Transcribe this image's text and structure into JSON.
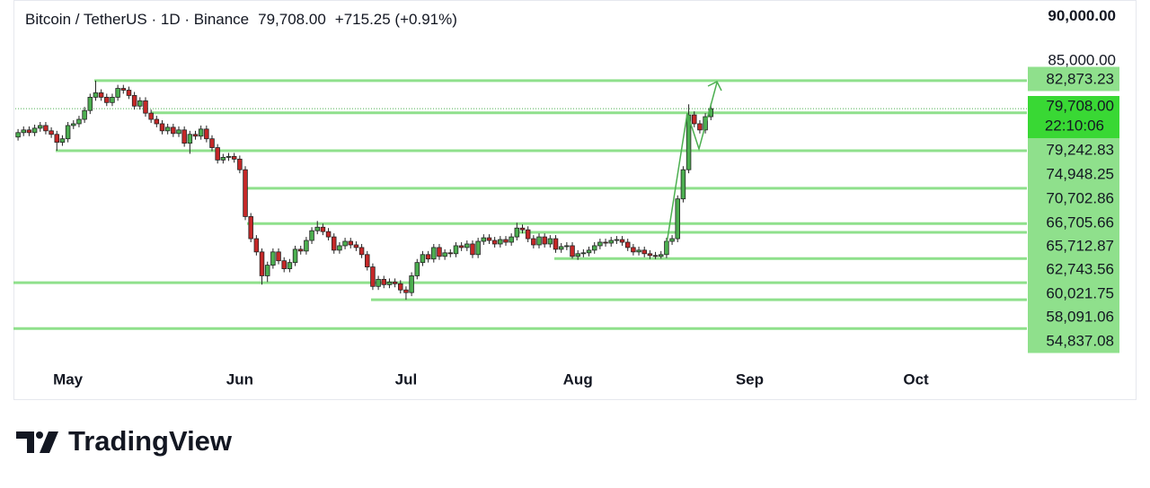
{
  "chart_data": {
    "type": "candlestick",
    "title": "Bitcoin / TetherUS · 1D · Binance",
    "change": "+715.25 (+0.91%)",
    "last_price": {
      "value": 79708,
      "label": "79,708.00"
    },
    "countdown": "22:10:06",
    "brand": "TradingView",
    "up_color": "#4caf50",
    "down_color": "#c62828",
    "level_color": "#8fe08c",
    "ylim": [
      50900,
      92000
    ],
    "yticks": [
      {
        "value": 90000,
        "label": "90,000.00"
      },
      {
        "value": 85000,
        "label": "85,000.00"
      }
    ],
    "levels": [
      {
        "value": 82873.23,
        "label": "82,873.23"
      },
      {
        "value": 79242.83,
        "label": "79,242.83"
      },
      {
        "value": 74948.25,
        "label": "74,948.25"
      },
      {
        "value": 70702.86,
        "label": "70,702.86"
      },
      {
        "value": 66705.66,
        "label": "66,705.66"
      },
      {
        "value": 65712.87,
        "label": "65,712.87"
      },
      {
        "value": 62743.56,
        "label": "62,743.56"
      },
      {
        "value": 60021.75,
        "label": "60,021.75"
      },
      {
        "value": 58091.06,
        "label": "58,091.06"
      },
      {
        "value": 54837.08,
        "label": "54,837.08"
      }
    ],
    "categories": [
      null,
      null,
      null,
      null,
      null,
      null,
      null,
      null,
      null,
      "May",
      null,
      null,
      null,
      null,
      null,
      null,
      null,
      null,
      null,
      null,
      null,
      null,
      null,
      null,
      null,
      null,
      null,
      null,
      null,
      null,
      null,
      null,
      null,
      null,
      null,
      null,
      null,
      null,
      null,
      null,
      "Jun",
      null,
      null,
      null,
      null,
      null,
      null,
      null,
      null,
      null,
      null,
      null,
      null,
      null,
      null,
      null,
      null,
      null,
      null,
      null,
      null,
      null,
      null,
      null,
      null,
      null,
      null,
      null,
      null,
      null,
      "Jul",
      null,
      null,
      null,
      null,
      null,
      null,
      null,
      null,
      null,
      null,
      null,
      null,
      null,
      null,
      null,
      null,
      null,
      null,
      null,
      null,
      null,
      null,
      null,
      null,
      null,
      null,
      null,
      null,
      null,
      null,
      "Aug",
      null,
      null,
      null,
      null,
      null,
      null,
      null,
      null,
      null,
      null,
      null,
      null,
      null,
      null,
      null,
      null,
      null,
      null,
      null,
      null,
      null,
      null,
      null,
      null,
      null,
      null,
      null,
      null,
      null,
      null,
      "Sep",
      null,
      null,
      null,
      null,
      null,
      null,
      null,
      null,
      null,
      null,
      null,
      null,
      null,
      null,
      null,
      null,
      null,
      null,
      null,
      null,
      null,
      null,
      null,
      null,
      null,
      null,
      null,
      null,
      null,
      "Oct",
      null,
      null,
      null,
      null,
      null,
      null,
      null,
      null,
      null,
      null,
      null,
      null,
      null,
      null,
      null,
      null,
      null,
      null,
      null,
      null
    ],
    "open": [
      76500,
      77000,
      77300,
      77000,
      77500,
      77800,
      77200,
      76800,
      75900,
      76300,
      77800,
      78000,
      78500,
      79500,
      81000,
      81500,
      81000,
      80400,
      81000,
      82000,
      81800,
      81200,
      80000,
      80600,
      79200,
      78500,
      78000,
      77200,
      77600,
      76900,
      77300,
      75800,
      76800,
      76600,
      77400,
      76300,
      75300,
      73900,
      74200,
      74300,
      74000,
      72800,
      67500,
      65000,
      63500,
      60800,
      62000,
      63500,
      62500,
      61600,
      62300,
      63800,
      63600,
      64800,
      65900,
      66300,
      65800,
      65200,
      63700,
      64200,
      64700,
      64300,
      64000,
      63200,
      61800,
      59600,
      60400,
      59800,
      60100,
      59900,
      59200,
      58900,
      60800,
      62300,
      63200,
      62700,
      64000,
      63000,
      63400,
      63300,
      64200,
      64000,
      64400,
      63200,
      64700,
      65100,
      64800,
      64400,
      64900,
      64600,
      65200,
      66200,
      66000,
      65000,
      64300,
      65200,
      64400,
      65000,
      63800,
      64100,
      64200,
      63000,
      63300,
      63400,
      63700,
      64200,
      64600,
      64500,
      64800,
      64900,
      64600,
      64000,
      63500,
      63700,
      63300,
      63100,
      63000,
      63200,
      64700,
      65000,
      69500,
      72800,
      79000,
      78000,
      77300,
      78800,
      null,
      null,
      null,
      null,
      null,
      null,
      null,
      null,
      null,
      null,
      null,
      null,
      null,
      null,
      null,
      null,
      null,
      null,
      null,
      null,
      null,
      null,
      null,
      null,
      null,
      null,
      null,
      null,
      null,
      null,
      null,
      null,
      null,
      null,
      null,
      null,
      null,
      null,
      null,
      null,
      null,
      null,
      null,
      null,
      null,
      null,
      null,
      null,
      null,
      null,
      null,
      null,
      null,
      null,
      null,
      null,
      null
    ],
    "high": [
      77400,
      77700,
      77700,
      77900,
      78200,
      78200,
      77600,
      77200,
      76700,
      78200,
      78400,
      78900,
      79900,
      81400,
      82873,
      81900,
      81400,
      81400,
      82400,
      82400,
      82200,
      81600,
      81000,
      81000,
      79600,
      78900,
      78400,
      78000,
      78000,
      77700,
      77700,
      77200,
      77200,
      77800,
      77800,
      76700,
      75700,
      74600,
      74700,
      74700,
      74400,
      73200,
      67900,
      65400,
      63900,
      62400,
      63900,
      63900,
      62900,
      62700,
      64200,
      64200,
      65200,
      66300,
      67000,
      66700,
      66200,
      65600,
      64600,
      65100,
      65100,
      64700,
      64400,
      63600,
      62200,
      60800,
      60800,
      60500,
      60500,
      60300,
      59600,
      61200,
      62700,
      63600,
      63600,
      64400,
      64400,
      63800,
      63800,
      64600,
      64600,
      64800,
      64800,
      65100,
      65500,
      65500,
      65200,
      65300,
      65300,
      65600,
      66800,
      66600,
      66400,
      65400,
      65600,
      65600,
      65400,
      65400,
      64500,
      64600,
      64600,
      63700,
      63800,
      64100,
      64600,
      65000,
      65000,
      65200,
      65300,
      65300,
      65000,
      64400,
      64100,
      64100,
      63700,
      63500,
      63600,
      65100,
      65400,
      69900,
      73200,
      80200,
      79400,
      78400,
      79200,
      80300,
      null,
      null,
      null,
      null,
      null,
      null,
      null,
      null,
      null,
      null,
      null,
      null,
      null,
      null,
      null,
      null,
      null,
      null,
      null,
      null,
      null,
      null,
      null,
      null,
      null,
      null,
      null,
      null,
      null,
      null,
      null,
      null,
      null,
      null,
      null,
      null,
      null,
      null,
      null,
      null,
      null,
      null,
      null,
      null,
      null,
      null,
      null,
      null,
      null,
      null,
      null,
      null,
      null,
      null,
      null,
      null,
      null
    ],
    "low": [
      76100,
      76600,
      76600,
      76600,
      77100,
      76800,
      76400,
      74950,
      75500,
      75900,
      77400,
      77600,
      78100,
      79100,
      80600,
      80600,
      80000,
      80000,
      80600,
      81400,
      80800,
      79600,
      79600,
      78800,
      78100,
      77600,
      76800,
      76800,
      76500,
      76500,
      75400,
      74600,
      76200,
      76200,
      75900,
      74900,
      73500,
      73500,
      73800,
      73600,
      72400,
      67100,
      64600,
      63100,
      59800,
      60100,
      61600,
      62100,
      61200,
      61200,
      61900,
      63200,
      63200,
      64400,
      65500,
      65400,
      64800,
      63300,
      63300,
      63800,
      63900,
      63600,
      62800,
      61400,
      59200,
      59200,
      59400,
      59400,
      59500,
      58800,
      58091,
      58500,
      60400,
      61900,
      62300,
      62300,
      62600,
      62600,
      62900,
      62900,
      63600,
      63600,
      62800,
      62800,
      64300,
      64400,
      64000,
      64000,
      64200,
      64200,
      64800,
      65600,
      64600,
      63900,
      63900,
      64000,
      64000,
      63400,
      63400,
      63700,
      62743,
      62600,
      62900,
      63000,
      63300,
      63800,
      64100,
      64100,
      64400,
      64200,
      63600,
      63100,
      63100,
      62900,
      62700,
      62700,
      62743,
      62800,
      64300,
      64600,
      69100,
      72400,
      77600,
      76900,
      76900,
      78400,
      null,
      null,
      null,
      null,
      null,
      null,
      null,
      null,
      null,
      null,
      null,
      null,
      null,
      null,
      null,
      null,
      null,
      null,
      null,
      null,
      null,
      null,
      null,
      null,
      null,
      null,
      null,
      null,
      null,
      null,
      null,
      null,
      null,
      null,
      null,
      null,
      null,
      null,
      null,
      null,
      null,
      null,
      null,
      null,
      null,
      null,
      null,
      null,
      null,
      null,
      null,
      null,
      null,
      null,
      null,
      null,
      null
    ],
    "close": [
      77000,
      77300,
      77000,
      77500,
      77800,
      77200,
      76800,
      75900,
      76300,
      77800,
      78000,
      78500,
      79500,
      81000,
      81500,
      81000,
      80400,
      81000,
      82000,
      81800,
      81200,
      80000,
      80600,
      79200,
      78500,
      78000,
      77200,
      77600,
      76900,
      77300,
      75800,
      76800,
      76600,
      77400,
      76300,
      75300,
      73900,
      74200,
      74300,
      74000,
      72800,
      67500,
      65000,
      63500,
      60800,
      62000,
      63500,
      62500,
      61600,
      62300,
      63800,
      63600,
      64800,
      65900,
      66300,
      65800,
      65200,
      63700,
      64200,
      64700,
      64300,
      64000,
      63200,
      61800,
      59600,
      60400,
      59800,
      60100,
      59900,
      59200,
      58900,
      60800,
      62300,
      63200,
      62700,
      64000,
      63000,
      63400,
      63300,
      64200,
      64000,
      64400,
      63200,
      64700,
      65100,
      64800,
      64400,
      64900,
      64600,
      65200,
      66200,
      66000,
      65000,
      64300,
      65200,
      64400,
      65000,
      63800,
      64100,
      64200,
      63000,
      63300,
      63400,
      63700,
      64200,
      64600,
      64500,
      64800,
      64900,
      64600,
      64000,
      63500,
      63700,
      63300,
      63100,
      63000,
      63200,
      64700,
      65000,
      69500,
      72800,
      79000,
      78000,
      77300,
      78800,
      79708,
      null,
      null,
      null,
      null,
      null,
      null,
      null,
      null,
      null,
      null,
      null,
      null,
      null,
      null,
      null,
      null,
      null,
      null,
      null,
      null,
      null,
      null,
      null,
      null,
      null,
      null,
      null,
      null,
      null,
      null,
      null,
      null,
      null,
      null,
      null,
      null,
      null,
      null,
      null,
      null,
      null,
      null,
      null,
      null,
      null,
      null,
      null,
      null,
      null,
      null,
      null,
      null,
      null,
      null,
      null,
      null,
      null
    ]
  }
}
